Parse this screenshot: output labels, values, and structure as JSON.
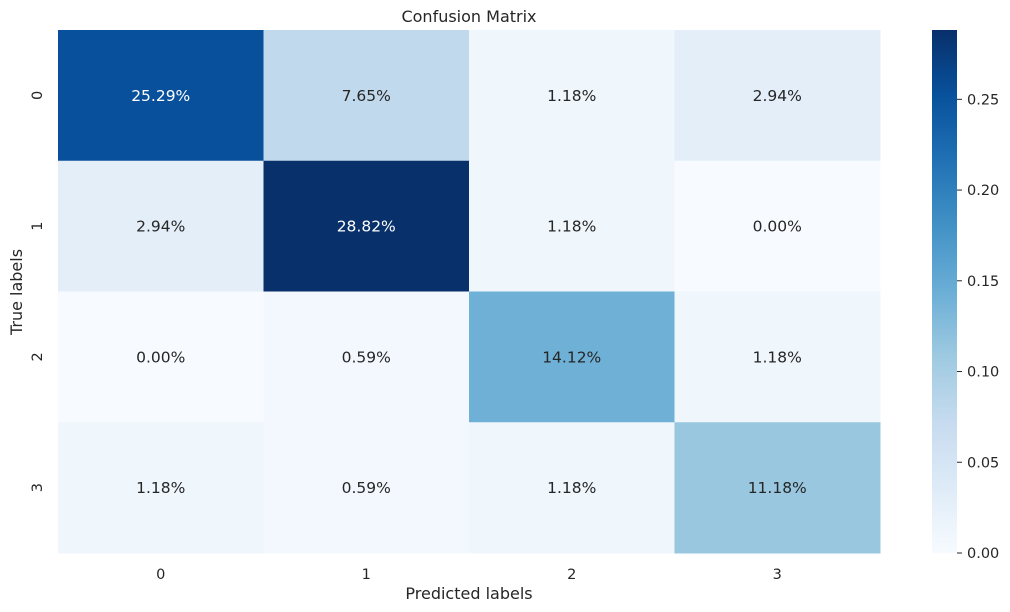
{
  "chart_data": {
    "type": "heatmap",
    "title": "Confusion Matrix",
    "xlabel": "Predicted labels",
    "ylabel": "True labels",
    "x_categories": [
      "0",
      "1",
      "2",
      "3"
    ],
    "y_categories": [
      "0",
      "1",
      "2",
      "3"
    ],
    "values": [
      [
        0.2529,
        0.0765,
        0.0118,
        0.0294
      ],
      [
        0.0294,
        0.2882,
        0.0118,
        0.0
      ],
      [
        0.0,
        0.0059,
        0.1412,
        0.0118
      ],
      [
        0.0118,
        0.0059,
        0.0118,
        0.1118
      ]
    ],
    "annotations": [
      [
        "25.29%",
        "7.65%",
        "1.18%",
        "2.94%"
      ],
      [
        "2.94%",
        "28.82%",
        "1.18%",
        "0.00%"
      ],
      [
        "0.00%",
        "0.59%",
        "14.12%",
        "1.18%"
      ],
      [
        "1.18%",
        "0.59%",
        "1.18%",
        "11.18%"
      ]
    ],
    "colormap": "Blues",
    "colorbar": {
      "range": [
        0,
        0.2882
      ],
      "ticks": [
        0.0,
        0.05,
        0.1,
        0.15,
        0.2,
        0.25
      ],
      "tick_labels": [
        "0.00",
        "0.05",
        "0.10",
        "0.15",
        "0.20",
        "0.25"
      ]
    },
    "grid": false,
    "legend": "colorbar-right"
  }
}
